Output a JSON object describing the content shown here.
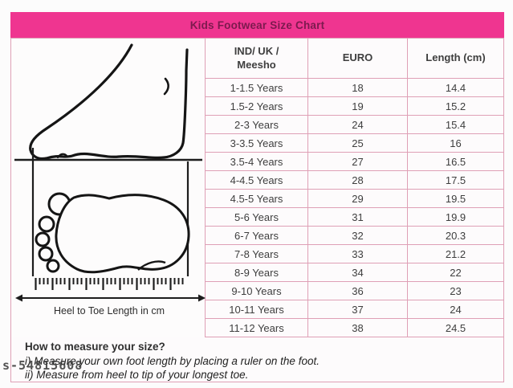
{
  "chart_data": {
    "type": "table",
    "title": "Kids Footwear Size Chart",
    "columns": [
      "IND/ UK / Meesho",
      "EURO",
      "Length (cm)"
    ],
    "rows": [
      [
        "1-1.5 Years",
        18,
        14.4
      ],
      [
        "1.5-2 Years",
        19,
        15.2
      ],
      [
        "2-3 Years",
        24,
        15.4
      ],
      [
        "3-3.5 Years",
        25,
        16
      ],
      [
        "3.5-4 Years",
        27,
        16.5
      ],
      [
        "4-4.5 Years",
        28,
        17.5
      ],
      [
        "4.5-5 Years",
        29,
        19.5
      ],
      [
        "5-6 Years",
        31,
        19.9
      ],
      [
        "6-7 Years",
        32,
        20.3
      ],
      [
        "7-8 Years",
        33,
        21.2
      ],
      [
        "8-9 Years",
        34,
        22
      ],
      [
        "9-10 Years",
        36,
        23
      ],
      [
        "10-11 Years",
        37,
        24
      ],
      [
        "11-12 Years",
        38,
        24.5
      ]
    ]
  },
  "illustration": {
    "caption": "Heel to Toe Length in cm"
  },
  "howto": {
    "title": "How to measure your size?",
    "step1": "i) Measure your own foot length by placing a ruler on the foot.",
    "step2": "ii) Measure from heel to tip of your longest toe."
  },
  "watermark": "s-54815608",
  "colors": {
    "header_bg": "#ef3590",
    "header_text": "#7c1a4e",
    "table_border": "#dfa0b6"
  }
}
